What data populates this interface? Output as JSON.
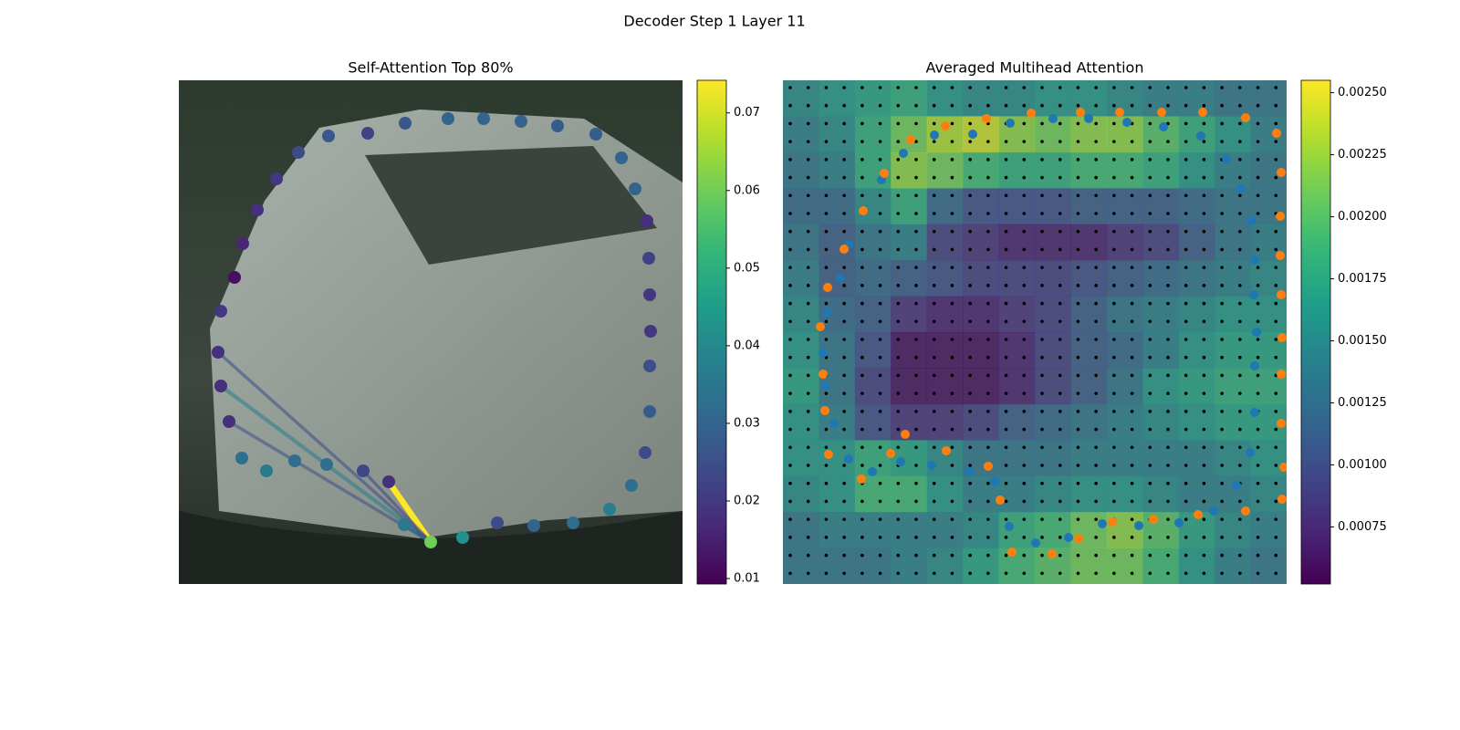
{
  "title": "Decoder Step 1 Layer 11",
  "chart_data": [
    {
      "type": "scatter",
      "title": "Self-Attention Top 80%",
      "xlim": [
        0,
        552
      ],
      "ylim": [
        552,
        0
      ],
      "points": {
        "x": [
          276,
          311,
          349,
          389,
          432,
          472,
          496,
          511,
          516,
          516,
          517,
          516,
          515,
          513,
          500,
          485,
          457,
          415,
          375,
          334,
          295,
          248,
          207,
          164,
          131,
          107,
          86,
          70,
          61,
          46,
          43,
          46,
          55,
          69,
          96,
          127,
          162,
          202,
          230,
          247
        ],
        "y": [
          506,
          501,
          485,
          488,
          485,
          470,
          444,
          408,
          363,
          313,
          275,
          235,
          195,
          154,
          119,
          85,
          59,
          50,
          45,
          42,
          42,
          47,
          58,
          61,
          79,
          108,
          142,
          179,
          216,
          253,
          298,
          335,
          374,
          414,
          428,
          417,
          421,
          428,
          440,
          487
        ],
        "values": [
          0.06,
          0.042,
          0.024,
          0.03,
          0.033,
          0.037,
          0.033,
          0.024,
          0.028,
          0.025,
          0.02,
          0.02,
          0.022,
          0.018,
          0.03,
          0.03,
          0.028,
          0.028,
          0.03,
          0.03,
          0.03,
          0.027,
          0.022,
          0.027,
          0.024,
          0.02,
          0.018,
          0.016,
          0.012,
          0.02,
          0.018,
          0.018,
          0.018,
          0.033,
          0.036,
          0.032,
          0.033,
          0.023,
          0.018,
          0.035
        ]
      },
      "lines": {
        "x": [
          230,
          247,
          46,
          43,
          55,
          202
        ],
        "y": [
          440,
          487,
          335,
          298,
          374,
          428
        ],
        "values": [
          0.074,
          0.04,
          0.037,
          0.024,
          0.025,
          0.022
        ]
      },
      "colorbar": {
        "lim": [
          0.0093,
          0.0742
        ],
        "ticks": [
          0.01,
          0.02,
          0.03,
          0.04,
          0.05,
          0.06,
          0.07
        ]
      }
    },
    {
      "type": "heatmap",
      "title": "Averaged Multihead Attention",
      "xlim": [
        0,
        552
      ],
      "ylim": [
        552,
        0
      ],
      "heatmap": [
        [
          0.0015,
          0.0016,
          0.0017,
          0.0018,
          0.0016,
          0.0015,
          0.0015,
          0.0016,
          0.0016,
          0.0015,
          0.0014,
          0.0014,
          0.0013,
          0.0013
        ],
        [
          0.0014,
          0.0015,
          0.0018,
          0.0021,
          0.0023,
          0.0024,
          0.0022,
          0.0021,
          0.0022,
          0.0022,
          0.002,
          0.0018,
          0.0016,
          0.0014
        ],
        [
          0.0013,
          0.0014,
          0.0018,
          0.0022,
          0.0021,
          0.0019,
          0.0018,
          0.0018,
          0.0019,
          0.0019,
          0.0018,
          0.0016,
          0.0014,
          0.0013
        ],
        [
          0.0012,
          0.0012,
          0.0015,
          0.0018,
          0.0012,
          0.001,
          0.001,
          0.001,
          0.0011,
          0.0011,
          0.0011,
          0.0012,
          0.0013,
          0.0013
        ],
        [
          0.0013,
          0.0011,
          0.0013,
          0.0014,
          0.0009,
          0.0008,
          0.0007,
          0.0007,
          0.0007,
          0.0008,
          0.0009,
          0.0011,
          0.0013,
          0.0014
        ],
        [
          0.0014,
          0.0011,
          0.0012,
          0.0011,
          0.001,
          0.0009,
          0.0009,
          0.0009,
          0.001,
          0.0011,
          0.0012,
          0.0013,
          0.0014,
          0.0015
        ],
        [
          0.0015,
          0.0012,
          0.0011,
          0.0008,
          0.0007,
          0.0007,
          0.0008,
          0.0009,
          0.0011,
          0.0013,
          0.0014,
          0.0015,
          0.0016,
          0.0016
        ],
        [
          0.0016,
          0.0013,
          0.001,
          0.0006,
          0.0006,
          0.0006,
          0.0007,
          0.0009,
          0.0011,
          0.0012,
          0.0014,
          0.0016,
          0.0017,
          0.0017
        ],
        [
          0.0017,
          0.0013,
          0.0009,
          0.0006,
          0.0006,
          0.0006,
          0.0007,
          0.0009,
          0.0011,
          0.0013,
          0.0016,
          0.0017,
          0.0018,
          0.0018
        ],
        [
          0.0016,
          0.0014,
          0.001,
          0.0008,
          0.0008,
          0.0009,
          0.0011,
          0.0012,
          0.0013,
          0.0014,
          0.0015,
          0.0016,
          0.0017,
          0.0017
        ],
        [
          0.0016,
          0.0016,
          0.0018,
          0.0017,
          0.0015,
          0.0013,
          0.0013,
          0.0013,
          0.0014,
          0.0014,
          0.0014,
          0.0014,
          0.0015,
          0.0016
        ],
        [
          0.0015,
          0.0016,
          0.0019,
          0.0019,
          0.0016,
          0.0014,
          0.0014,
          0.0015,
          0.0016,
          0.0016,
          0.0015,
          0.0014,
          0.0014,
          0.0015
        ],
        [
          0.0013,
          0.0014,
          0.0014,
          0.0014,
          0.0014,
          0.0015,
          0.0018,
          0.0019,
          0.0021,
          0.0022,
          0.002,
          0.0017,
          0.0015,
          0.0014
        ],
        [
          0.0013,
          0.0013,
          0.0013,
          0.0014,
          0.0015,
          0.0017,
          0.0019,
          0.002,
          0.0021,
          0.0021,
          0.0019,
          0.0016,
          0.0014,
          0.0013
        ]
      ],
      "series": [
        {
          "color": "#1f77b4",
          "x": [
            249,
            296,
            335,
            377,
            417,
            458,
            486,
            501,
            513,
            517,
            516,
            519,
            517,
            517,
            512,
            497,
            472,
            434,
            390,
            350,
            313,
            277,
            248,
            232,
            204,
            163,
            129,
            98,
            72,
            56,
            47,
            44,
            48,
            63,
            72,
            108,
            132,
            166,
            208
          ],
          "y": [
            47,
            42,
            42,
            46,
            51,
            61,
            86,
            119,
            154,
            197,
            235,
            276,
            313,
            364,
            408,
            444,
            472,
            485,
            488,
            486,
            501,
            507,
            489,
            440,
            429,
            422,
            418,
            429,
            415,
            376,
            335,
            299,
            254,
            217,
            180,
            109,
            80,
            60,
            59
          ]
        },
        {
          "color": "#ff7f0e",
          "x": [
            223,
            272,
            326,
            369,
            415,
            460,
            507,
            541,
            546,
            545,
            545,
            546,
            547,
            546,
            546,
            549,
            547,
            507,
            455,
            406,
            361,
            324,
            295,
            251,
            238,
            225,
            179,
            118,
            86,
            50,
            134,
            46,
            44,
            41,
            49,
            67,
            88,
            111,
            140,
            178
          ],
          "y": [
            42,
            36,
            35,
            35,
            35,
            35,
            41,
            58,
            101,
            149,
            192,
            235,
            282,
            322,
            376,
            424,
            459,
            472,
            476,
            481,
            484,
            502,
            519,
            517,
            460,
            423,
            406,
            409,
            437,
            410,
            388,
            362,
            322,
            270,
            227,
            185,
            143,
            102,
            65,
            50
          ]
        }
      ],
      "colorbar": {
        "lim": [
          0.00052,
          0.00255
        ],
        "ticks": [
          0.00075,
          {
            "value": 0.001,
            "label": "0.00100"
          },
          0.00125,
          {
            "value": 0.0015,
            "label": "0.00150"
          },
          0.00175,
          {
            "value": 0.002,
            "label": "0.00200"
          },
          0.00225,
          {
            "value": 0.0025,
            "label": "0.00250"
          }
        ]
      }
    }
  ]
}
